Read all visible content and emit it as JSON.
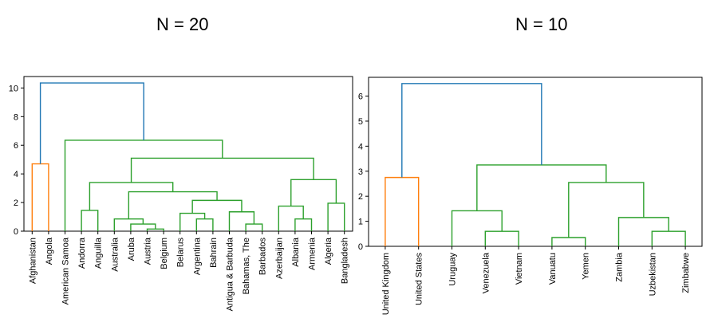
{
  "titles": {
    "left": "N = 20",
    "right": "N = 10"
  },
  "colors": {
    "orange": "#ff7f0e",
    "green": "#2ca02c",
    "blue": "#1f77b4"
  },
  "chart_data": [
    {
      "type": "dendrogram",
      "title": "N = 20",
      "ylim": [
        0,
        10.8
      ],
      "yticks": [
        0,
        2,
        4,
        6,
        8,
        10
      ],
      "leaves": [
        "Afghanistan",
        "Angola",
        "American Samoa",
        "Andorra",
        "Anguilla",
        "Australia",
        "Aruba",
        "Austria",
        "Belgium",
        "Belarus",
        "Argentina",
        "Bahrain",
        "Antigua & Barbuda",
        "Bahamas, The",
        "Barbados",
        "Azerbaijan",
        "Albania",
        "Armenia",
        "Algeria",
        "Bangladesh"
      ],
      "merges": [
        {
          "a": [
            "leaf",
            0
          ],
          "b": [
            "leaf",
            1
          ],
          "h": 4.7,
          "color": "orange"
        },
        {
          "a": [
            "leaf",
            7
          ],
          "b": [
            "leaf",
            8
          ],
          "h": 0.15,
          "color": "green"
        },
        {
          "a": [
            "leaf",
            6
          ],
          "b": [
            "node",
            1
          ],
          "h": 0.5,
          "color": "green"
        },
        {
          "a": [
            "leaf",
            5
          ],
          "b": [
            "node",
            2
          ],
          "h": 0.85,
          "color": "green"
        },
        {
          "a": [
            "leaf",
            10
          ],
          "b": [
            "leaf",
            11
          ],
          "h": 0.85,
          "color": "green"
        },
        {
          "a": [
            "leaf",
            13
          ],
          "b": [
            "leaf",
            14
          ],
          "h": 0.5,
          "color": "green"
        },
        {
          "a": [
            "leaf",
            9
          ],
          "b": [
            "node",
            4
          ],
          "h": 1.25,
          "color": "green"
        },
        {
          "a": [
            "leaf",
            12
          ],
          "b": [
            "node",
            5
          ],
          "h": 1.35,
          "color": "green"
        },
        {
          "a": [
            "node",
            6
          ],
          "b": [
            "node",
            7
          ],
          "h": 2.15,
          "color": "green"
        },
        {
          "a": [
            "node",
            3
          ],
          "b": [
            "node",
            8
          ],
          "h": 2.75,
          "color": "green"
        },
        {
          "a": [
            "leaf",
            3
          ],
          "b": [
            "leaf",
            4
          ],
          "h": 1.45,
          "color": "green"
        },
        {
          "a": [
            "node",
            10
          ],
          "b": [
            "node",
            9
          ],
          "h": 3.4,
          "color": "green"
        },
        {
          "a": [
            "leaf",
            16
          ],
          "b": [
            "leaf",
            17
          ],
          "h": 0.85,
          "color": "green"
        },
        {
          "a": [
            "leaf",
            15
          ],
          "b": [
            "node",
            12
          ],
          "h": 1.75,
          "color": "green"
        },
        {
          "a": [
            "leaf",
            18
          ],
          "b": [
            "leaf",
            19
          ],
          "h": 1.95,
          "color": "green"
        },
        {
          "a": [
            "node",
            13
          ],
          "b": [
            "node",
            14
          ],
          "h": 3.6,
          "color": "green"
        },
        {
          "a": [
            "node",
            11
          ],
          "b": [
            "node",
            15
          ],
          "h": 5.1,
          "color": "green"
        },
        {
          "a": [
            "leaf",
            2
          ],
          "b": [
            "node",
            16
          ],
          "h": 6.35,
          "color": "green"
        },
        {
          "a": [
            "node",
            0
          ],
          "b": [
            "node",
            17
          ],
          "h": 10.35,
          "color": "blue"
        }
      ]
    },
    {
      "type": "dendrogram",
      "title": "N = 10",
      "ylim": [
        0,
        6.75
      ],
      "yticks": [
        0,
        1,
        2,
        3,
        4,
        5,
        6
      ],
      "leaves": [
        "United Kingdom",
        "United States",
        "Uruguay",
        "Venezuela",
        "Vietnam",
        "Vanuatu",
        "Yemen",
        "Zambia",
        "Uzbekistan",
        "Zimbabwe"
      ],
      "merges": [
        {
          "a": [
            "leaf",
            0
          ],
          "b": [
            "leaf",
            1
          ],
          "h": 2.75,
          "color": "orange"
        },
        {
          "a": [
            "leaf",
            3
          ],
          "b": [
            "leaf",
            4
          ],
          "h": 0.6,
          "color": "green"
        },
        {
          "a": [
            "leaf",
            2
          ],
          "b": [
            "node",
            1
          ],
          "h": 1.42,
          "color": "green"
        },
        {
          "a": [
            "leaf",
            5
          ],
          "b": [
            "leaf",
            6
          ],
          "h": 0.35,
          "color": "green"
        },
        {
          "a": [
            "leaf",
            8
          ],
          "b": [
            "leaf",
            9
          ],
          "h": 0.6,
          "color": "green"
        },
        {
          "a": [
            "leaf",
            7
          ],
          "b": [
            "node",
            4
          ],
          "h": 1.15,
          "color": "green"
        },
        {
          "a": [
            "node",
            3
          ],
          "b": [
            "node",
            5
          ],
          "h": 2.55,
          "color": "green"
        },
        {
          "a": [
            "node",
            2
          ],
          "b": [
            "node",
            6
          ],
          "h": 3.25,
          "color": "green"
        },
        {
          "a": [
            "node",
            0
          ],
          "b": [
            "node",
            7
          ],
          "h": 6.5,
          "color": "blue"
        }
      ]
    }
  ]
}
